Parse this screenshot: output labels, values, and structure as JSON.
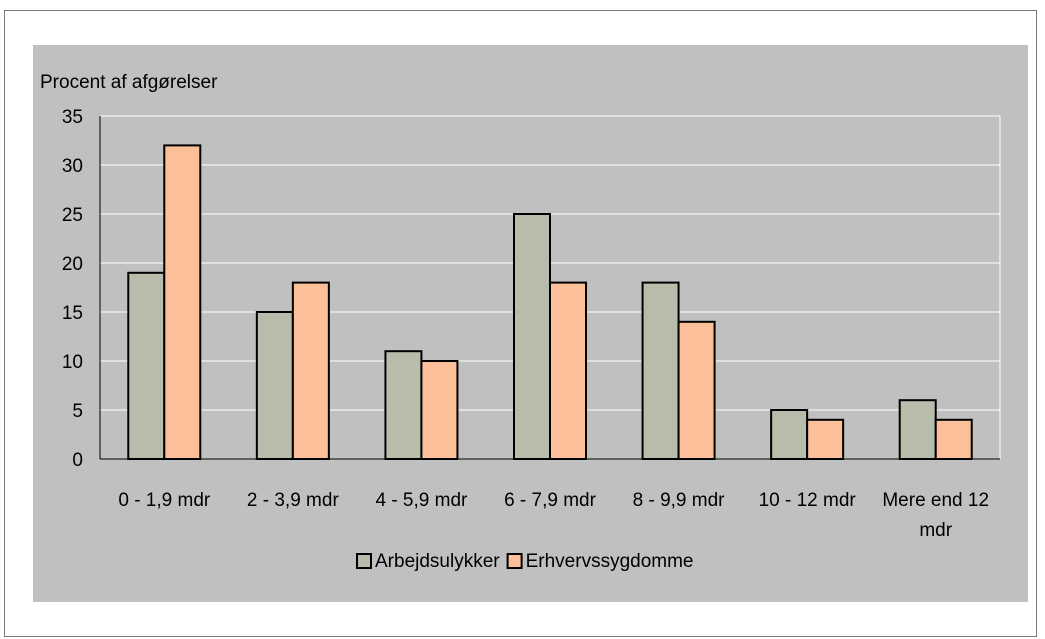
{
  "chart_data": {
    "type": "bar",
    "title": "",
    "ylabel": "Procent af afgørelser",
    "xlabel": "",
    "ylim": [
      0,
      35
    ],
    "yticks": [
      0,
      5,
      10,
      15,
      20,
      25,
      30,
      35
    ],
    "categories": [
      "0 - 1,9 mdr",
      "2 - 3,9 mdr",
      "4 - 5,9 mdr",
      "6 - 7,9 mdr",
      "8 - 9,9 mdr",
      "10 - 12 mdr",
      "Mere end 12 mdr"
    ],
    "series": [
      {
        "name": "Arbejdsulykker",
        "values": [
          19,
          15,
          11,
          25,
          18,
          5,
          6
        ],
        "color": "#b8bcaa"
      },
      {
        "name": "Erhvervssygdomme",
        "values": [
          32,
          18,
          10,
          18,
          14,
          4,
          4
        ],
        "color": "#fbbf99"
      }
    ],
    "grid": true,
    "legend": "bottom",
    "colors": {
      "panel": "#c0c0c0",
      "plot": "#c0c0c0",
      "gridline": "#ffffff",
      "frame": "#7a7a7a"
    }
  }
}
